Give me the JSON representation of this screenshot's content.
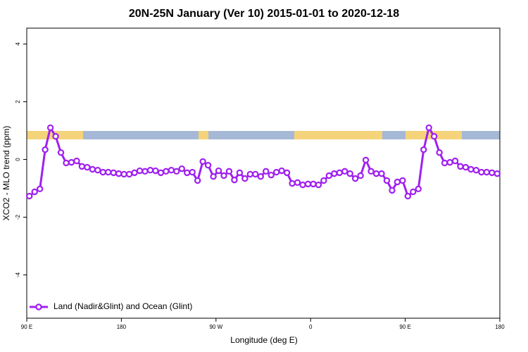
{
  "chart_data": {
    "type": "line",
    "title": "20N-25N January (Ver 10)   2015-01-01 to 2020-12-18",
    "x_label": "Longitude (deg E)",
    "y_label": "XCO2 - MLO trend (ppm)",
    "x": [
      92.5,
      97.5,
      102.5,
      107.5,
      112.5,
      117.5,
      122.5,
      127.5,
      132.5,
      137.5,
      142.5,
      147.5,
      152.5,
      157.5,
      162.5,
      167.5,
      172.5,
      177.5,
      182.5,
      187.5,
      192.5,
      197.5,
      202.5,
      207.5,
      212.5,
      217.5,
      222.5,
      227.5,
      232.5,
      237.5,
      242.5,
      247.5,
      252.5,
      257.5,
      262.5,
      267.5,
      272.5,
      277.5,
      282.5,
      287.5,
      292.5,
      297.5,
      302.5,
      307.5,
      312.5,
      317.5,
      322.5,
      327.5,
      332.5,
      337.5,
      342.5,
      347.5,
      352.5,
      357.5,
      362.5,
      367.5,
      372.5,
      377.5,
      382.5,
      387.5,
      392.5,
      397.5,
      402.5,
      407.5,
      412.5,
      417.5,
      422.5,
      427.5,
      432.5,
      437.5,
      442.5,
      447.5,
      452.5,
      457.5,
      462.5,
      467.5,
      472.5,
      477.5,
      482.5,
      487.5,
      492.5,
      497.5,
      502.5,
      507.5,
      512.5,
      517.5,
      522.5,
      527.5,
      532.5,
      537.5
    ],
    "series": [
      {
        "name": "Land (Nadir&Glint) and Ocean (Glint)",
        "color": "#a020f0",
        "values": [
          -1.27,
          -1.12,
          -1.02,
          0.34,
          1.1,
          0.8,
          0.24,
          -0.12,
          -0.1,
          -0.05,
          -0.24,
          -0.27,
          -0.34,
          -0.37,
          -0.44,
          -0.44,
          -0.46,
          -0.49,
          -0.51,
          -0.51,
          -0.46,
          -0.39,
          -0.41,
          -0.37,
          -0.39,
          -0.46,
          -0.41,
          -0.37,
          -0.41,
          -0.32,
          -0.46,
          -0.44,
          -0.73,
          -0.07,
          -0.2,
          -0.59,
          -0.39,
          -0.56,
          -0.41,
          -0.71,
          -0.46,
          -0.66,
          -0.51,
          -0.51,
          -0.59,
          -0.41,
          -0.54,
          -0.44,
          -0.39,
          -0.46,
          -0.83,
          -0.8,
          -0.88,
          -0.85,
          -0.85,
          -0.88,
          -0.73,
          -0.56,
          -0.49,
          -0.46,
          -0.41,
          -0.49,
          -0.66,
          -0.56,
          -0.02,
          -0.41,
          -0.49,
          -0.49,
          -0.73,
          -1.07,
          -0.78,
          -0.73,
          -1.27,
          -1.12,
          -1.02,
          0.34,
          1.1,
          0.8,
          0.24,
          -0.12,
          -0.1,
          -0.05,
          -0.24,
          -0.27,
          -0.34,
          -0.37,
          -0.44,
          -0.44,
          -0.46,
          -0.49
        ]
      }
    ],
    "xlim": [
      90,
      540
    ],
    "xticks": [
      {
        "value": 90,
        "label": "90 E"
      },
      180,
      {
        "value": 270,
        "label": "90 W"
      },
      {
        "value": 360,
        "label": "0"
      },
      {
        "value": 450,
        "label": "90 E"
      },
      {
        "value": 540,
        "label": "180"
      }
    ],
    "ylim": [
      -5.5,
      4.55
    ],
    "yticks": [
      -4,
      -2,
      0,
      2,
      4
    ],
    "grid": false,
    "legend": "bottom-left"
  }
}
